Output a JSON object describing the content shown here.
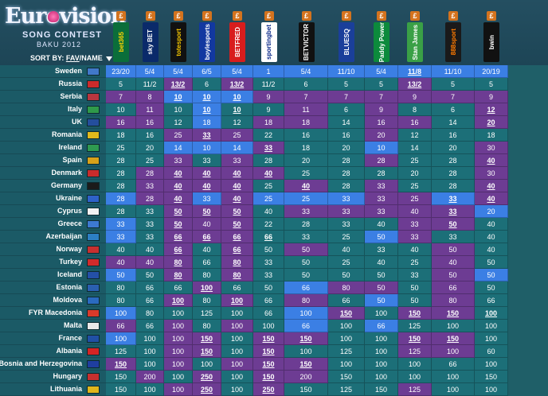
{
  "brand": {
    "line1": "Eurovision",
    "line2": "SONG CONTEST",
    "line3": "BAKU 2012"
  },
  "sort": {
    "label": "SORT BY:",
    "fav": "FAV",
    "sep": "/",
    "name": "NAME"
  },
  "bookmakers": [
    {
      "name": "bet365",
      "bg": "#0b6e3a",
      "fg": "#ffd400"
    },
    {
      "name": "sky BET",
      "bg": "#0a2a6a",
      "fg": "#ffffff"
    },
    {
      "name": "totesport",
      "bg": "#111111",
      "fg": "#f2c400"
    },
    {
      "name": "boylesports",
      "bg": "#1238a0",
      "fg": "#ffffff"
    },
    {
      "name": "BETFRED",
      "bg": "#d81d1d",
      "fg": "#ffffff"
    },
    {
      "name": "sportingbet",
      "bg": "#ffffff",
      "fg": "#0d2c8a"
    },
    {
      "name": "BETVICTOR",
      "bg": "#111111",
      "fg": "#ffffff"
    },
    {
      "name": "BLUESQ",
      "bg": "#1a3f9a",
      "fg": "#ffffff"
    },
    {
      "name": "Paddy Power",
      "bg": "#0c8a3c",
      "fg": "#ffffff"
    },
    {
      "name": "Stan James",
      "bg": "#3aa046",
      "fg": "#ffffff"
    },
    {
      "name": "888sport",
      "bg": "#1a1a1a",
      "fg": "#ff7a00"
    },
    {
      "name": "bwin",
      "bg": "#111111",
      "fg": "#ffffff"
    }
  ],
  "badge": "£",
  "rows": [
    {
      "country": "Sweden",
      "flag": "#4178c9",
      "odds": [
        "23/20",
        "5/4",
        "5/4",
        "6/5",
        "5/4",
        "1",
        "5/4",
        "11/10",
        "5/4",
        "11/8",
        "11/10",
        "20/19"
      ],
      "styles": [
        "b",
        "b",
        "b",
        "b",
        "b",
        "b",
        "b",
        "b",
        "b",
        "b",
        "b",
        "b"
      ],
      "u": [
        0,
        0,
        0,
        0,
        0,
        0,
        0,
        0,
        0,
        1,
        0,
        0
      ]
    },
    {
      "country": "Russia",
      "flag": "#cc2b2b",
      "odds": [
        "5",
        "11/2",
        "13/2",
        "6",
        "13/2",
        "11/2",
        "6",
        "5",
        "5",
        "13/2",
        "5",
        "5"
      ],
      "styles": [
        "t",
        "t",
        "p",
        "t",
        "p",
        "t",
        "t",
        "t",
        "t",
        "p",
        "t",
        "t"
      ],
      "u": [
        0,
        0,
        1,
        0,
        1,
        0,
        0,
        0,
        0,
        1,
        0,
        0
      ]
    },
    {
      "country": "Serbia",
      "flag": "#b8363f",
      "odds": [
        "7",
        "8",
        "10",
        "10",
        "10",
        "9",
        "7",
        "7",
        "7",
        "9",
        "7",
        "9"
      ],
      "styles": [
        "p",
        "p",
        "b",
        "b",
        "b",
        "p",
        "p",
        "p",
        "p",
        "p",
        "p",
        "p"
      ],
      "u": [
        0,
        0,
        1,
        1,
        1,
        0,
        0,
        0,
        0,
        0,
        0,
        0
      ]
    },
    {
      "country": "Italy",
      "flag": "#2f9a4a",
      "odds": [
        "10",
        "11",
        "10",
        "10",
        "10",
        "9",
        "11",
        "6",
        "9",
        "8",
        "6",
        "12"
      ],
      "styles": [
        "t",
        "p",
        "t",
        "b",
        "t",
        "t",
        "p",
        "t",
        "p",
        "t",
        "t",
        "p"
      ],
      "u": [
        0,
        0,
        0,
        1,
        1,
        0,
        0,
        0,
        0,
        0,
        0,
        1
      ]
    },
    {
      "country": "UK",
      "flag": "#244e9c",
      "odds": [
        "16",
        "16",
        "12",
        "18",
        "12",
        "18",
        "18",
        "14",
        "16",
        "16",
        "14",
        "20"
      ],
      "styles": [
        "p",
        "p",
        "t",
        "b",
        "t",
        "p",
        "p",
        "t",
        "p",
        "p",
        "t",
        "p"
      ],
      "u": [
        0,
        0,
        0,
        0,
        0,
        0,
        0,
        0,
        0,
        0,
        0,
        1
      ]
    },
    {
      "country": "Romania",
      "flag": "#e0b91c",
      "odds": [
        "18",
        "16",
        "25",
        "33",
        "25",
        "22",
        "16",
        "16",
        "20",
        "12",
        "16",
        "18"
      ],
      "styles": [
        "t",
        "t",
        "p",
        "p",
        "p",
        "t",
        "t",
        "t",
        "p",
        "t",
        "t",
        "t"
      ],
      "u": [
        0,
        0,
        0,
        1,
        0,
        0,
        0,
        0,
        0,
        0,
        0,
        0
      ]
    },
    {
      "country": "Ireland",
      "flag": "#2e9a50",
      "odds": [
        "25",
        "20",
        "14",
        "10",
        "14",
        "33",
        "18",
        "20",
        "10",
        "14",
        "20",
        "30"
      ],
      "styles": [
        "t",
        "t",
        "b",
        "b",
        "b",
        "p",
        "t",
        "t",
        "b",
        "t",
        "t",
        "p"
      ],
      "u": [
        0,
        0,
        0,
        0,
        0,
        1,
        0,
        0,
        0,
        0,
        0,
        0
      ]
    },
    {
      "country": "Spain",
      "flag": "#d8a11a",
      "odds": [
        "28",
        "25",
        "33",
        "33",
        "33",
        "28",
        "20",
        "28",
        "28",
        "25",
        "28",
        "40"
      ],
      "styles": [
        "t",
        "t",
        "p",
        "t",
        "p",
        "t",
        "t",
        "t",
        "p",
        "t",
        "t",
        "p"
      ],
      "u": [
        0,
        0,
        0,
        0,
        0,
        0,
        0,
        0,
        0,
        0,
        0,
        1
      ]
    },
    {
      "country": "Denmark",
      "flag": "#c82c2c",
      "odds": [
        "28",
        "28",
        "40",
        "40",
        "40",
        "40",
        "25",
        "28",
        "28",
        "20",
        "28",
        "30"
      ],
      "styles": [
        "t",
        "p",
        "p",
        "p",
        "p",
        "p",
        "t",
        "t",
        "t",
        "t",
        "t",
        "p"
      ],
      "u": [
        0,
        0,
        1,
        1,
        1,
        1,
        0,
        0,
        0,
        0,
        0,
        0
      ]
    },
    {
      "country": "Germany",
      "flag": "#1b1b1b",
      "odds": [
        "28",
        "33",
        "40",
        "40",
        "40",
        "25",
        "40",
        "28",
        "33",
        "25",
        "28",
        "40"
      ],
      "styles": [
        "t",
        "p",
        "p",
        "p",
        "p",
        "t",
        "p",
        "t",
        "p",
        "t",
        "t",
        "p"
      ],
      "u": [
        0,
        0,
        1,
        1,
        1,
        0,
        1,
        0,
        0,
        0,
        0,
        1
      ]
    },
    {
      "country": "Ukraine",
      "flag": "#2e62c9",
      "odds": [
        "28",
        "28",
        "40",
        "33",
        "40",
        "25",
        "25",
        "33",
        "33",
        "25",
        "33",
        "40"
      ],
      "styles": [
        "b",
        "p",
        "p",
        "b",
        "p",
        "b",
        "b",
        "b",
        "p",
        "p",
        "b",
        "p"
      ],
      "u": [
        0,
        0,
        1,
        0,
        1,
        0,
        0,
        0,
        0,
        0,
        1,
        1
      ]
    },
    {
      "country": "Cyprus",
      "flag": "#f2f2f2",
      "odds": [
        "28",
        "33",
        "50",
        "50",
        "50",
        "40",
        "33",
        "33",
        "33",
        "40",
        "33",
        "20"
      ],
      "styles": [
        "t",
        "t",
        "p",
        "p",
        "p",
        "t",
        "p",
        "p",
        "p",
        "p",
        "p",
        "b"
      ],
      "u": [
        0,
        0,
        1,
        1,
        1,
        0,
        0,
        0,
        0,
        0,
        1,
        0
      ]
    },
    {
      "country": "Greece",
      "flag": "#3d79d1",
      "odds": [
        "33",
        "33",
        "50",
        "40",
        "50",
        "22",
        "28",
        "33",
        "40",
        "33",
        "50",
        "40"
      ],
      "styles": [
        "b",
        "t",
        "p",
        "p",
        "p",
        "t",
        "t",
        "t",
        "t",
        "p",
        "p",
        "t"
      ],
      "u": [
        0,
        0,
        1,
        0,
        1,
        0,
        0,
        0,
        0,
        0,
        1,
        0
      ]
    },
    {
      "country": "Azerbaijan",
      "flag": "#2c7fc4",
      "odds": [
        "33",
        "33",
        "66",
        "66",
        "66",
        "66",
        "33",
        "25",
        "50",
        "33",
        "33",
        "40"
      ],
      "styles": [
        "b",
        "t",
        "p",
        "p",
        "p",
        "t",
        "t",
        "t",
        "b",
        "p",
        "t",
        "t"
      ],
      "u": [
        0,
        0,
        1,
        1,
        1,
        1,
        0,
        0,
        0,
        0,
        0,
        0
      ]
    },
    {
      "country": "Norway",
      "flag": "#c7302f",
      "odds": [
        "40",
        "40",
        "66",
        "40",
        "66",
        "50",
        "50",
        "40",
        "33",
        "40",
        "50",
        "40"
      ],
      "styles": [
        "t",
        "t",
        "p",
        "t",
        "p",
        "t",
        "p",
        "t",
        "t",
        "t",
        "p",
        "t"
      ],
      "u": [
        0,
        0,
        1,
        0,
        1,
        0,
        0,
        0,
        0,
        0,
        0,
        0
      ]
    },
    {
      "country": "Turkey",
      "flag": "#d22b2b",
      "odds": [
        "40",
        "40",
        "80",
        "66",
        "80",
        "33",
        "50",
        "25",
        "40",
        "25",
        "40",
        "50"
      ],
      "styles": [
        "p",
        "p",
        "p",
        "t",
        "p",
        "t",
        "t",
        "t",
        "t",
        "t",
        "p",
        "t"
      ],
      "u": [
        0,
        0,
        1,
        0,
        1,
        0,
        0,
        0,
        0,
        0,
        0,
        0
      ]
    },
    {
      "country": "Iceland",
      "flag": "#2450a8",
      "odds": [
        "50",
        "50",
        "80",
        "80",
        "80",
        "33",
        "50",
        "50",
        "50",
        "33",
        "50",
        "50"
      ],
      "styles": [
        "b",
        "t",
        "p",
        "t",
        "p",
        "t",
        "t",
        "t",
        "t",
        "t",
        "p",
        "b"
      ],
      "u": [
        0,
        0,
        1,
        0,
        1,
        0,
        0,
        0,
        0,
        0,
        0,
        0
      ]
    },
    {
      "country": "Estonia",
      "flag": "#2a5fb0",
      "odds": [
        "80",
        "66",
        "66",
        "100",
        "66",
        "50",
        "66",
        "80",
        "50",
        "50",
        "66",
        "50"
      ],
      "styles": [
        "t",
        "t",
        "t",
        "p",
        "t",
        "t",
        "b",
        "p",
        "p",
        "t",
        "p",
        "t"
      ],
      "u": [
        0,
        0,
        0,
        1,
        0,
        0,
        0,
        0,
        0,
        0,
        0,
        0
      ]
    },
    {
      "country": "Moldova",
      "flag": "#2a6ac0",
      "odds": [
        "80",
        "66",
        "100",
        "80",
        "100",
        "66",
        "80",
        "66",
        "50",
        "50",
        "80",
        "66"
      ],
      "styles": [
        "t",
        "t",
        "p",
        "t",
        "p",
        "t",
        "p",
        "t",
        "b",
        "t",
        "p",
        "t"
      ],
      "u": [
        0,
        0,
        1,
        0,
        1,
        0,
        0,
        0,
        0,
        0,
        0,
        0
      ]
    },
    {
      "country": "FYR Macedonia",
      "flag": "#d93a2a",
      "odds": [
        "100",
        "80",
        "100",
        "125",
        "100",
        "66",
        "100",
        "150",
        "100",
        "150",
        "150",
        "100"
      ],
      "styles": [
        "b",
        "t",
        "t",
        "t",
        "t",
        "t",
        "b",
        "p",
        "t",
        "p",
        "p",
        "t"
      ],
      "u": [
        0,
        0,
        0,
        0,
        0,
        0,
        0,
        1,
        0,
        1,
        1,
        1
      ]
    },
    {
      "country": "Malta",
      "flag": "#e8e8e8",
      "odds": [
        "66",
        "66",
        "100",
        "80",
        "100",
        "100",
        "66",
        "100",
        "66",
        "125",
        "100",
        "100"
      ],
      "styles": [
        "p",
        "t",
        "p",
        "t",
        "p",
        "t",
        "b",
        "t",
        "b",
        "t",
        "t",
        "t"
      ],
      "u": [
        0,
        0,
        0,
        0,
        0,
        0,
        0,
        0,
        0,
        0,
        0,
        0
      ]
    },
    {
      "country": "France",
      "flag": "#2050a5",
      "odds": [
        "100",
        "100",
        "100",
        "150",
        "100",
        "150",
        "150",
        "100",
        "100",
        "150",
        "150",
        "100"
      ],
      "styles": [
        "b",
        "t",
        "p",
        "p",
        "t",
        "p",
        "p",
        "t",
        "t",
        "p",
        "p",
        "t"
      ],
      "u": [
        0,
        0,
        0,
        1,
        0,
        1,
        1,
        0,
        0,
        1,
        1,
        0
      ]
    },
    {
      "country": "Albania",
      "flag": "#d42424",
      "odds": [
        "125",
        "100",
        "100",
        "150",
        "100",
        "150",
        "100",
        "125",
        "100",
        "125",
        "100",
        "60"
      ],
      "styles": [
        "t",
        "t",
        "p",
        "p",
        "t",
        "p",
        "t",
        "t",
        "t",
        "p",
        "p",
        "t"
      ],
      "u": [
        0,
        0,
        0,
        1,
        0,
        1,
        0,
        0,
        0,
        0,
        0,
        0
      ]
    },
    {
      "country": "Bosnia and Herzegovina",
      "flag": "#1f3ea0",
      "odds": [
        "150",
        "100",
        "100",
        "100",
        "100",
        "150",
        "150",
        "100",
        "100",
        "100",
        "66",
        "100"
      ],
      "styles": [
        "p",
        "t",
        "p",
        "t",
        "p",
        "p",
        "p",
        "t",
        "t",
        "t",
        "t",
        "t"
      ],
      "u": [
        1,
        0,
        0,
        0,
        0,
        1,
        1,
        0,
        0,
        0,
        0,
        0
      ]
    },
    {
      "country": "Hungary",
      "flag": "#c7302f",
      "odds": [
        "150",
        "200",
        "100",
        "250",
        "100",
        "150",
        "200",
        "150",
        "100",
        "100",
        "100",
        "150"
      ],
      "styles": [
        "t",
        "p",
        "t",
        "p",
        "t",
        "p",
        "p",
        "t",
        "t",
        "t",
        "t",
        "t"
      ],
      "u": [
        0,
        0,
        0,
        1,
        0,
        1,
        0,
        0,
        0,
        0,
        0,
        0
      ]
    },
    {
      "country": "Lithuania",
      "flag": "#e0b61c",
      "odds": [
        "150",
        "100",
        "100",
        "250",
        "100",
        "250",
        "150",
        "125",
        "150",
        "125",
        "100",
        "100"
      ],
      "styles": [
        "t",
        "t",
        "p",
        "p",
        "t",
        "p",
        "t",
        "t",
        "t",
        "p",
        "t",
        "t"
      ],
      "u": [
        0,
        0,
        0,
        1,
        0,
        1,
        0,
        0,
        0,
        0,
        0,
        0
      ]
    }
  ]
}
